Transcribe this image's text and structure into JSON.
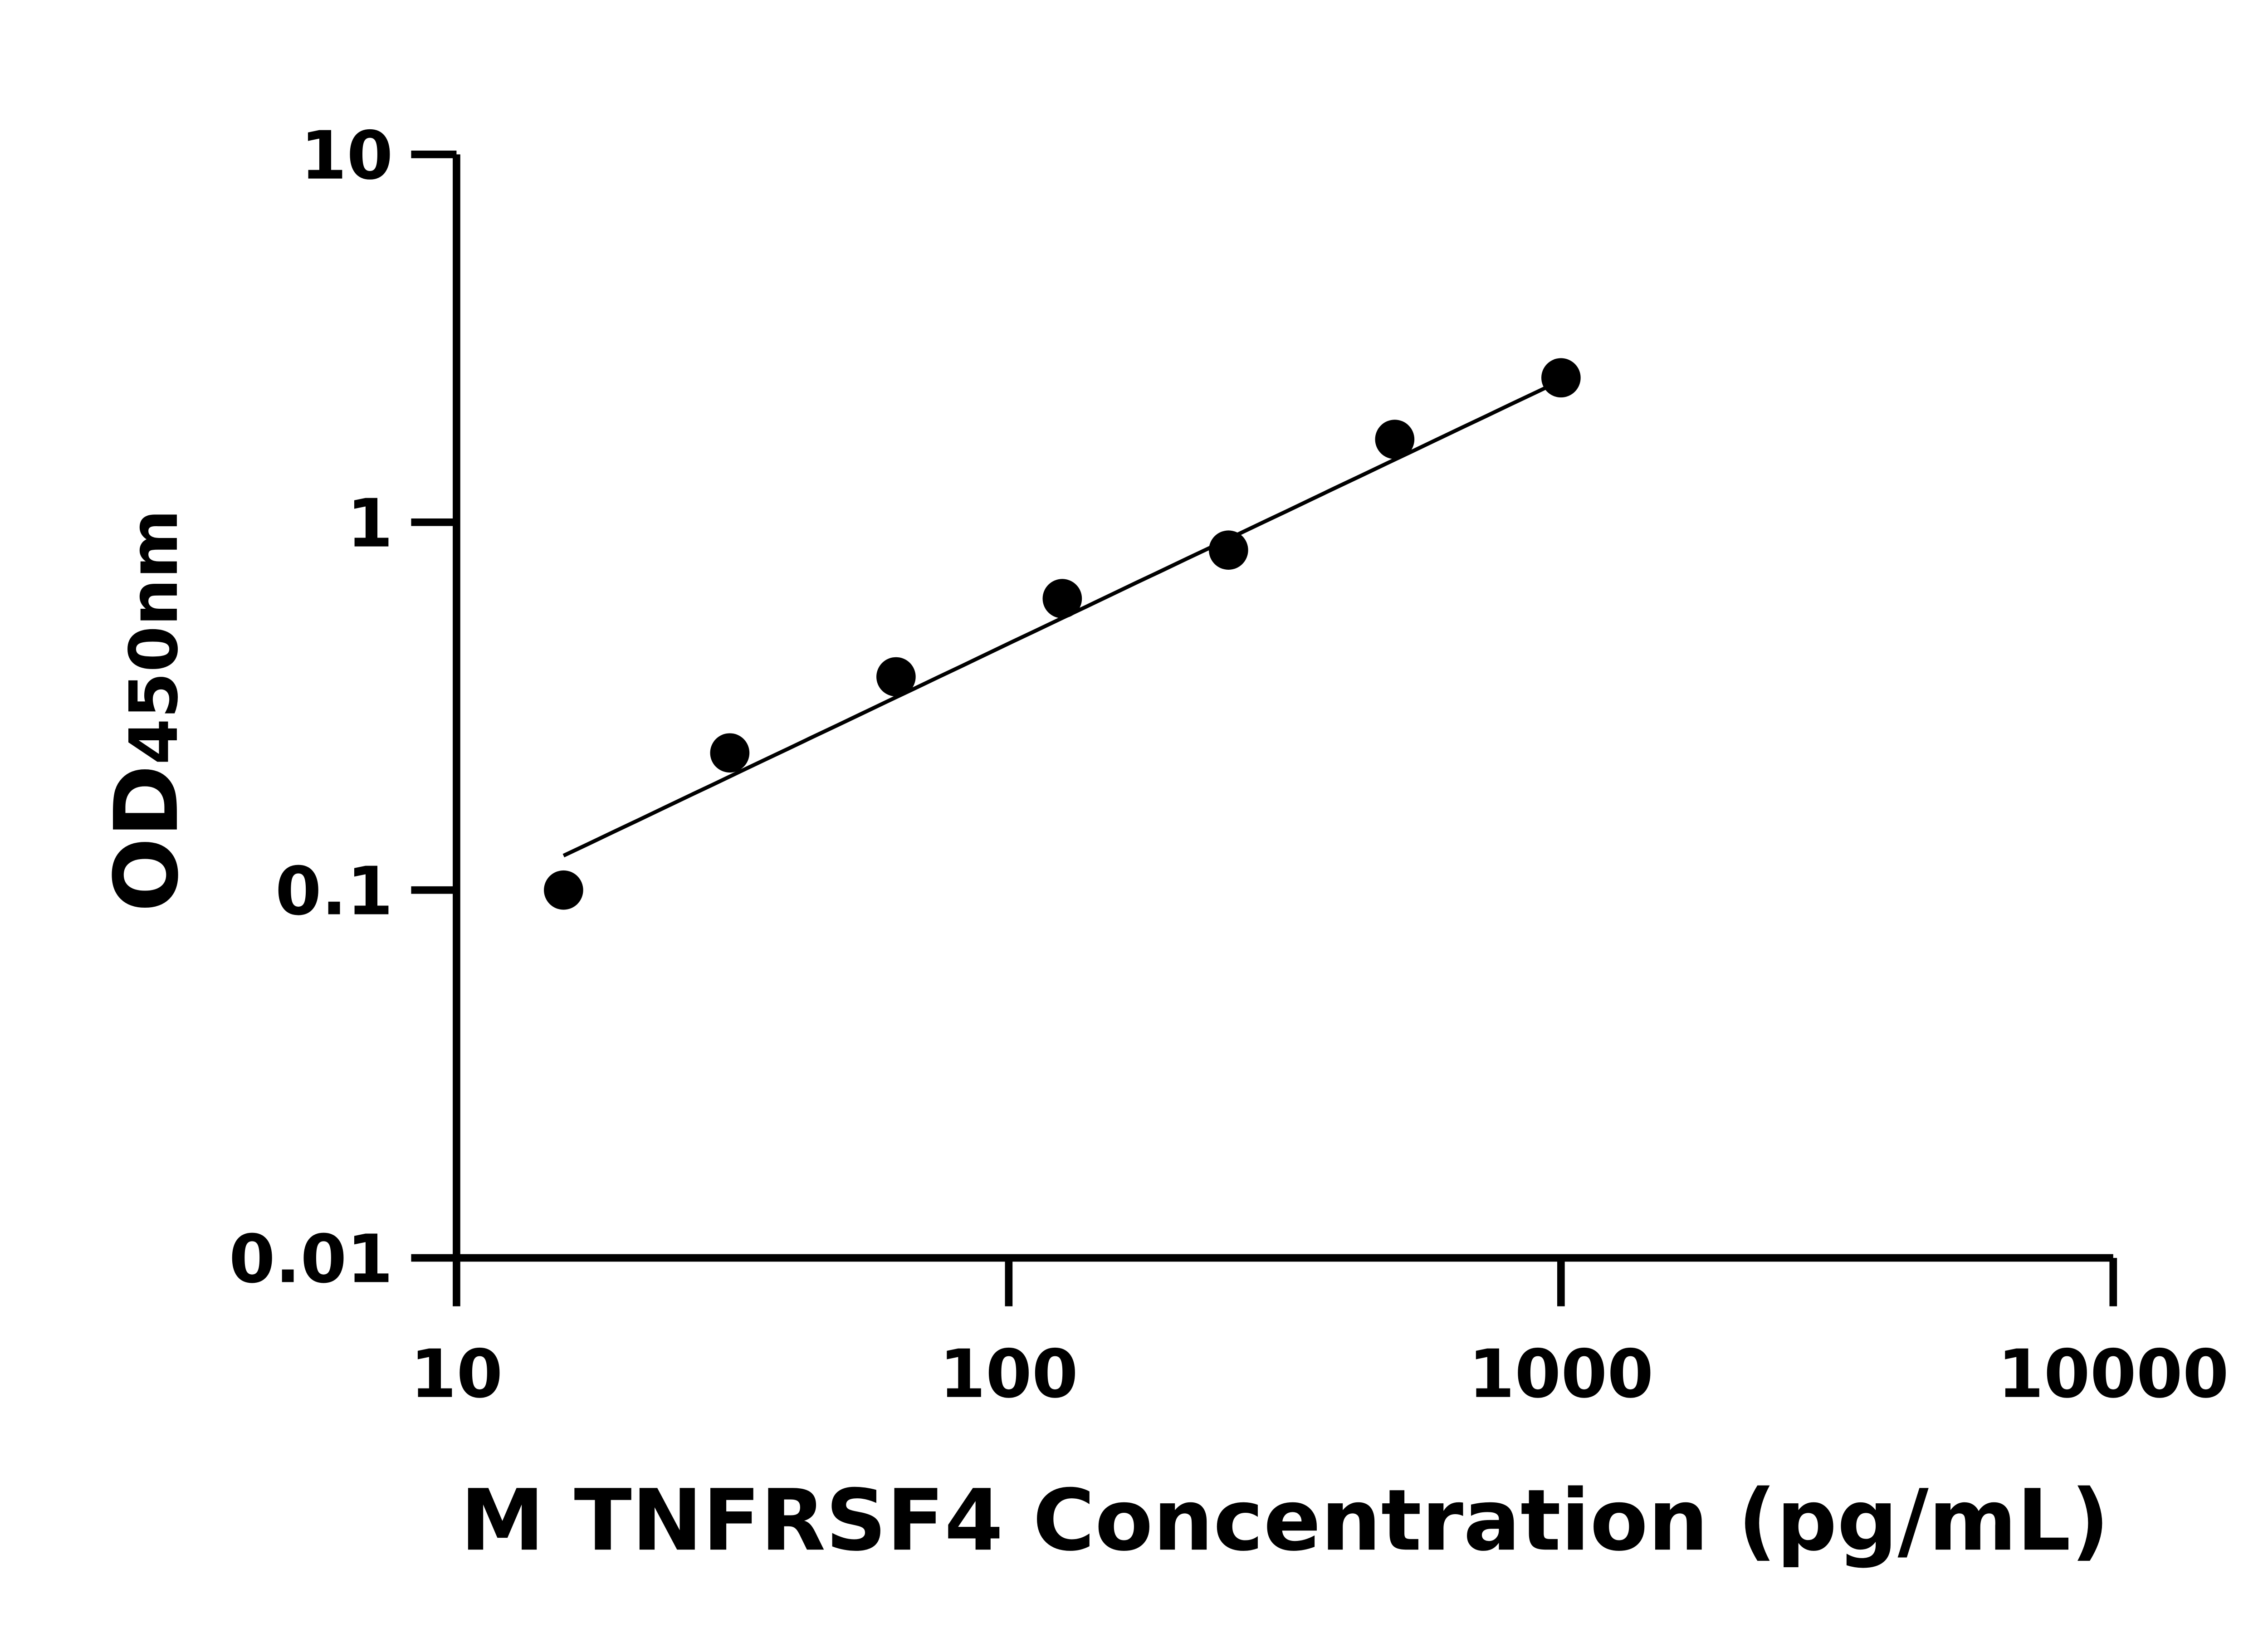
{
  "chart_data": {
    "type": "scatter",
    "title": "",
    "xlabel": "M TNFRSF4 Concentration (pg/mL)",
    "ylabel_main": "OD",
    "ylabel_sub": "450nm",
    "x_scale": "log",
    "y_scale": "log",
    "xlim": [
      10,
      10000
    ],
    "ylim": [
      0.01,
      10
    ],
    "x_ticks": [
      "10",
      "100",
      "1000",
      "10000"
    ],
    "y_ticks": [
      "0.01",
      "0.1",
      "1",
      "10"
    ],
    "grid": false,
    "legend": "none",
    "series": [
      {
        "x": [
          15.625,
          31.25,
          62.5,
          125,
          250,
          500,
          1000
        ],
        "y": [
          0.1,
          0.236,
          0.38,
          0.62,
          0.84,
          1.68,
          2.47
        ]
      }
    ],
    "fit_line": {
      "x": [
        15.625,
        1000
      ],
      "y": [
        0.124,
        2.43
      ]
    },
    "colors": {
      "points": "#000000",
      "axes": "#000000",
      "fit": "#000000"
    }
  }
}
